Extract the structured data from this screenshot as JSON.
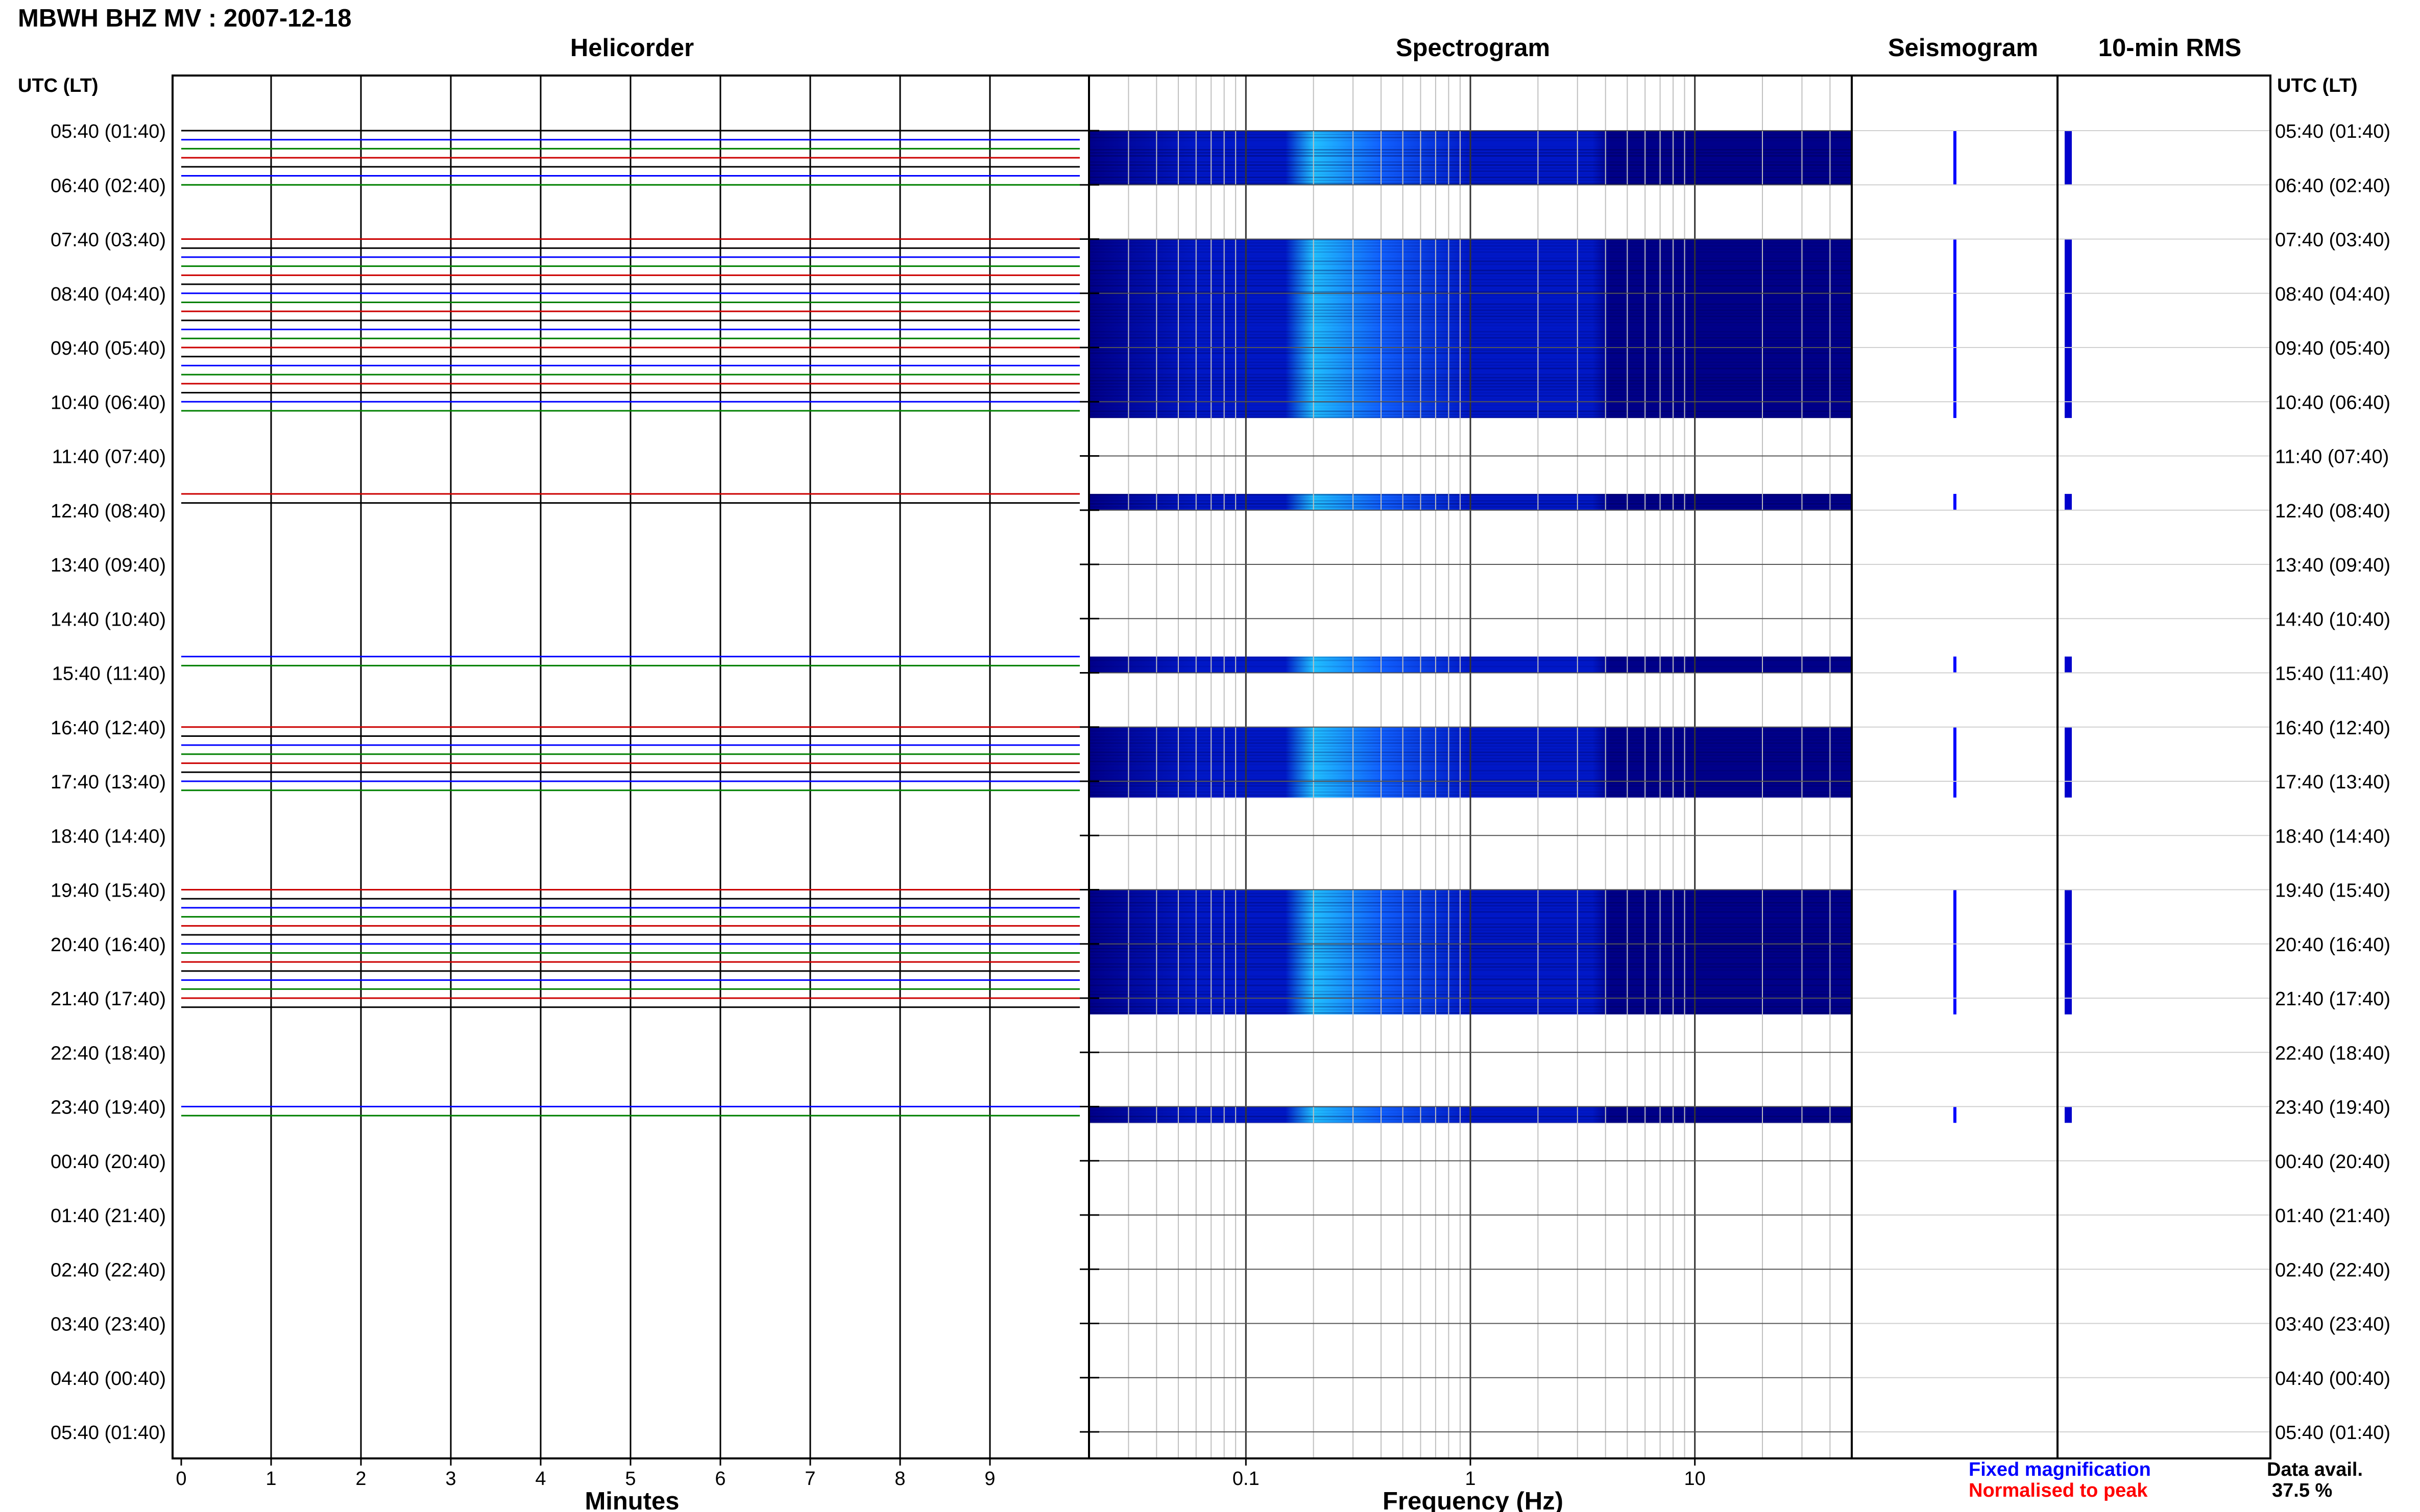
{
  "page_title": "MBWH BHZ MV : 2007-12-18",
  "time_axis": {
    "header": "UTC (LT)",
    "labels": [
      "05:40 (01:40)",
      "06:40 (02:40)",
      "07:40 (03:40)",
      "08:40 (04:40)",
      "09:40 (05:40)",
      "10:40 (06:40)",
      "11:40 (07:40)",
      "12:40 (08:40)",
      "13:40 (09:40)",
      "14:40 (10:40)",
      "15:40 (11:40)",
      "16:40 (12:40)",
      "17:40 (13:40)",
      "18:40 (14:40)",
      "19:40 (15:40)",
      "20:40 (16:40)",
      "21:40 (17:40)",
      "22:40 (18:40)",
      "23:40 (19:40)",
      "00:40 (20:40)",
      "01:40 (21:40)",
      "02:40 (22:40)",
      "03:40 (23:40)",
      "04:40 (00:40)",
      "05:40 (01:40)"
    ]
  },
  "legend": {
    "fixed": "Fixed magnification",
    "normalised": "Normalised to peak",
    "fixed_color": "#0000ff",
    "normalised_color": "#ff0000"
  },
  "data_availability": {
    "label": "Data avail.",
    "value": "37.5 %"
  },
  "chart_data": [
    {
      "type": "line",
      "title": "Helicorder",
      "xlabel": "Minutes",
      "xlim": [
        0,
        10
      ],
      "x_ticks": [
        "0",
        "1",
        "2",
        "3",
        "4",
        "5",
        "6",
        "7",
        "8",
        "9"
      ],
      "y_unit": "hours after 05:40 UTC",
      "ylim": [
        0,
        24
      ],
      "trace_colors": [
        "#000000",
        "#0000ff",
        "#008000",
        "#cc0000"
      ],
      "data_segments_hours": [
        [
          0,
          1
        ],
        [
          2,
          5.3
        ],
        [
          6.7,
          7
        ],
        [
          9.7,
          10
        ],
        [
          11,
          12.3
        ],
        [
          14,
          16.3
        ],
        [
          18,
          18.3
        ]
      ]
    },
    {
      "type": "heatmap",
      "title": "Spectrogram",
      "xlabel": "Frequency (Hz)",
      "x_scale": "log",
      "xlim": [
        0.02,
        50
      ],
      "x_ticks": [
        "0.1",
        "1",
        "10"
      ],
      "colormap": [
        "#00008a",
        "#0018c8",
        "#1060ff",
        "#20c0ff"
      ],
      "dominant_band_hz": [
        0.2,
        0.4
      ],
      "data_segments_hours": [
        [
          0,
          1
        ],
        [
          2,
          5.3
        ],
        [
          6.7,
          7
        ],
        [
          9.7,
          10
        ],
        [
          11,
          12.3
        ],
        [
          14,
          16.3
        ],
        [
          18,
          18.3
        ]
      ]
    },
    {
      "type": "line",
      "title": "Seismogram",
      "data_segments_hours": [
        [
          0,
          1
        ],
        [
          2,
          5.3
        ],
        [
          6.7,
          7
        ],
        [
          9.7,
          10
        ],
        [
          11,
          12.3
        ],
        [
          14,
          16.3
        ],
        [
          18,
          18.3
        ]
      ]
    },
    {
      "type": "bar",
      "title": "10-min RMS",
      "bar_color": "#0000cc",
      "data_segments_hours": [
        [
          0,
          1
        ],
        [
          2,
          5.3
        ],
        [
          6.7,
          7
        ],
        [
          9.7,
          10
        ],
        [
          11,
          12.3
        ],
        [
          14,
          16.3
        ],
        [
          18,
          18.3
        ]
      ]
    }
  ]
}
